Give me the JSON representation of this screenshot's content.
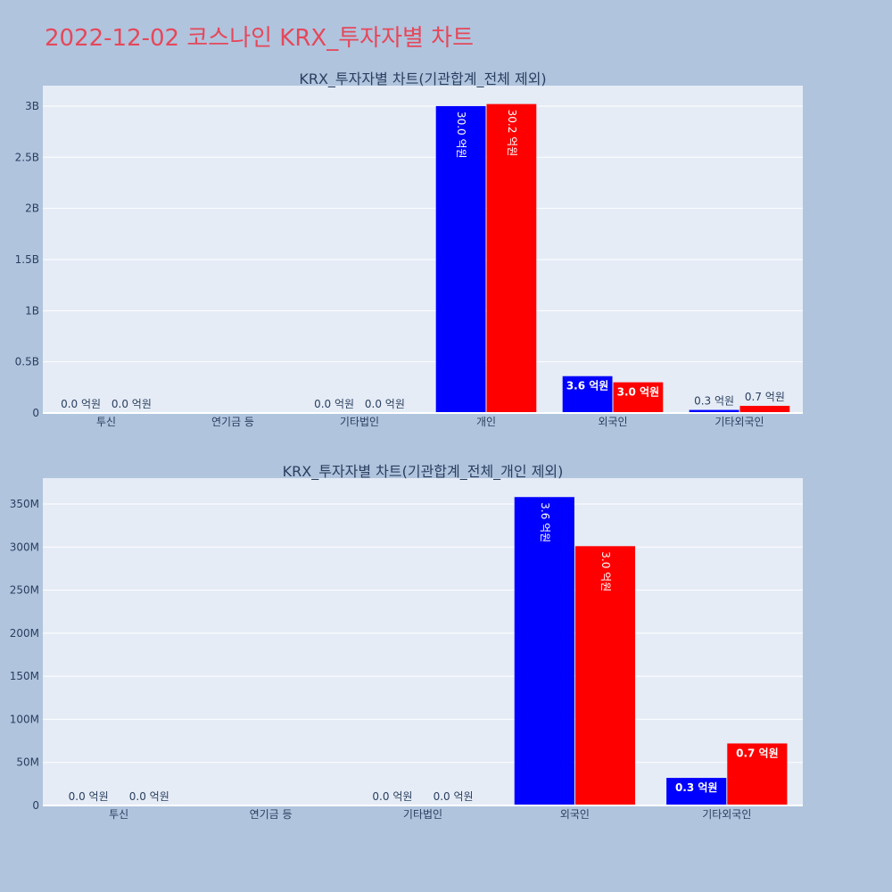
{
  "page_title": "2022-12-02 코스나인 KRX_투자자별 차트",
  "colors": {
    "buy": "#0000ff",
    "sell": "#ff0000",
    "plot_bg": "#e5ecf6",
    "paper_bg": "#b0c4de",
    "title": "#e5485a"
  },
  "chart_data": [
    {
      "type": "bar",
      "title": "KRX_투자자별 차트(기관합계_전체 제외)",
      "categories": [
        "투신",
        "연기금 등",
        "기타법인",
        "개인",
        "외국인",
        "기타외국인"
      ],
      "ylim": [
        0,
        3200000000
      ],
      "yticks": [
        0,
        500000000,
        1000000000,
        1500000000,
        2000000000,
        2500000000,
        3000000000
      ],
      "ytick_labels": [
        "0",
        "0.5B",
        "1B",
        "1.5B",
        "2B",
        "2.5B",
        "3B"
      ],
      "grid": true,
      "series": [
        {
          "color": "#0000ff",
          "values": [
            0,
            null,
            0,
            3000000000,
            360000000,
            30000000
          ],
          "labels": [
            "0.0 억원",
            "",
            "0.0 억원",
            "30.0 억원",
            "3.6 억원",
            "0.3 억원"
          ]
        },
        {
          "color": "#ff0000",
          "values": [
            0,
            null,
            0,
            3020000000,
            300000000,
            70000000
          ],
          "labels": [
            "0.0 억원",
            "",
            "0.0 억원",
            "30.2 억원",
            "3.0 억원",
            "0.7 억원"
          ]
        }
      ]
    },
    {
      "type": "bar",
      "title": "KRX_투자자별 차트(기관합계_전체_개인 제외)",
      "categories": [
        "투신",
        "연기금 등",
        "기타법인",
        "외국인",
        "기타외국인"
      ],
      "ylim": [
        0,
        380000000
      ],
      "yticks": [
        0,
        50000000,
        100000000,
        150000000,
        200000000,
        250000000,
        300000000,
        350000000
      ],
      "ytick_labels": [
        "0",
        "50M",
        "100M",
        "150M",
        "200M",
        "250M",
        "300M",
        "350M"
      ],
      "grid": true,
      "series": [
        {
          "color": "#0000ff",
          "values": [
            0,
            null,
            0,
            358000000,
            32000000
          ],
          "labels": [
            "0.0 억원",
            "",
            "0.0 억원",
            "3.6 억원",
            "0.3 억원"
          ]
        },
        {
          "color": "#ff0000",
          "values": [
            0,
            null,
            0,
            301000000,
            72000000
          ],
          "labels": [
            "0.0 억원",
            "",
            "0.0 억원",
            "3.0 억원",
            "0.7 억원"
          ]
        }
      ]
    }
  ]
}
